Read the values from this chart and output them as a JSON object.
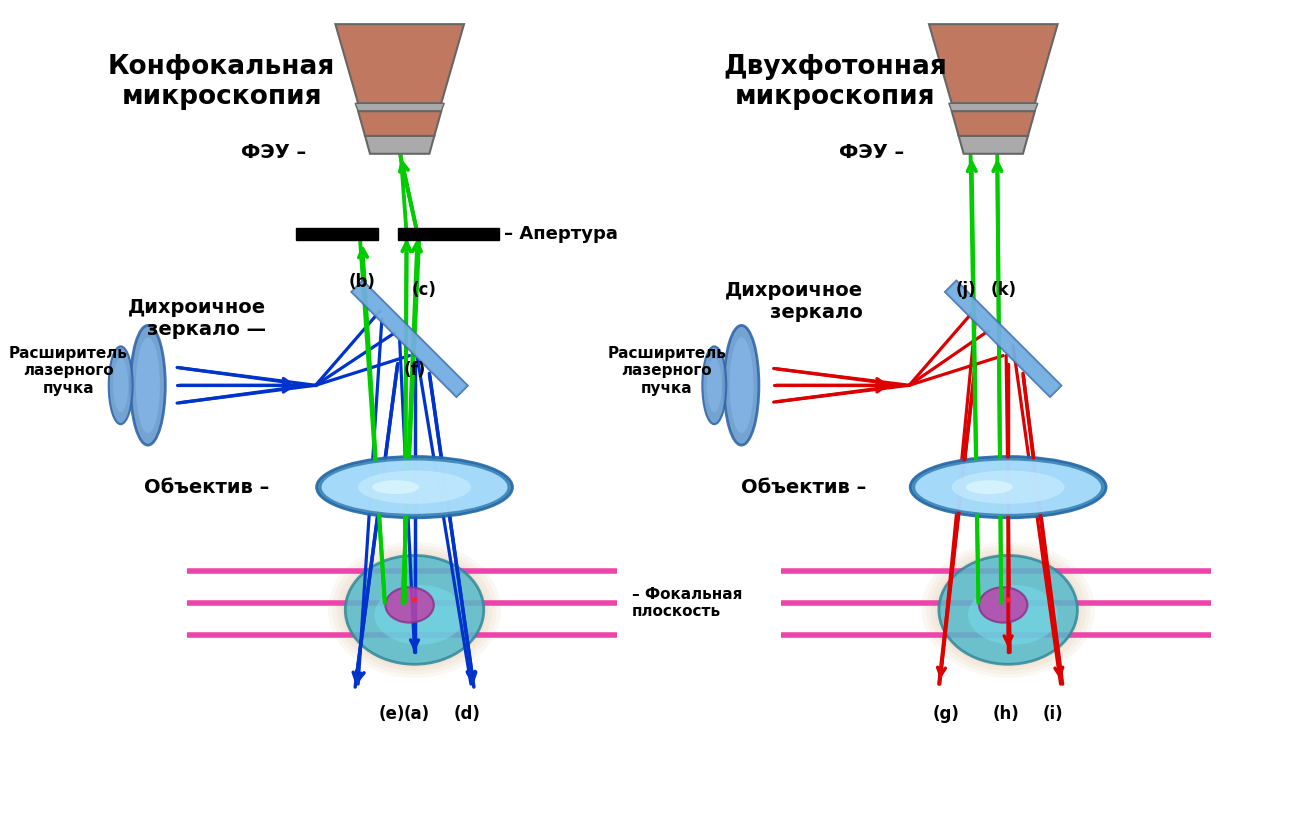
{
  "title_left": "Конфокальная\nмикроскопия",
  "title_right": "Двухфотонная\nмикроскопия",
  "label_feu": "ФЭУ –",
  "label_apertura": "– Апертура",
  "label_dichroic_left": "Дихроичное\nзеркало —",
  "label_dichroic_right": "Дихроичное\nзеркало",
  "label_expander": "Расширитель\nлазерного\nпучка",
  "label_objective": "Объектив –",
  "label_focal": "– Фокальная\nплоскость",
  "bg_color": "#ffffff",
  "blue_color": "#0033cc",
  "green_color": "#00cc00",
  "red_color": "#dd0000",
  "pink_color": "#ee44aa",
  "mirror_color_light": "#88bbee",
  "mirror_color_dark": "#4488bb",
  "feu_body": "#c07860",
  "feu_gray": "#aaaaaa",
  "cell_teal": "#44aabb",
  "cell_purple": "#cc55aa",
  "cell_sand": "#d4aa77",
  "lens_blue_light": "#88ccee",
  "lens_blue_dark": "#3366aa",
  "objective_light": "#aaddff",
  "objective_mid": "#55aacc"
}
